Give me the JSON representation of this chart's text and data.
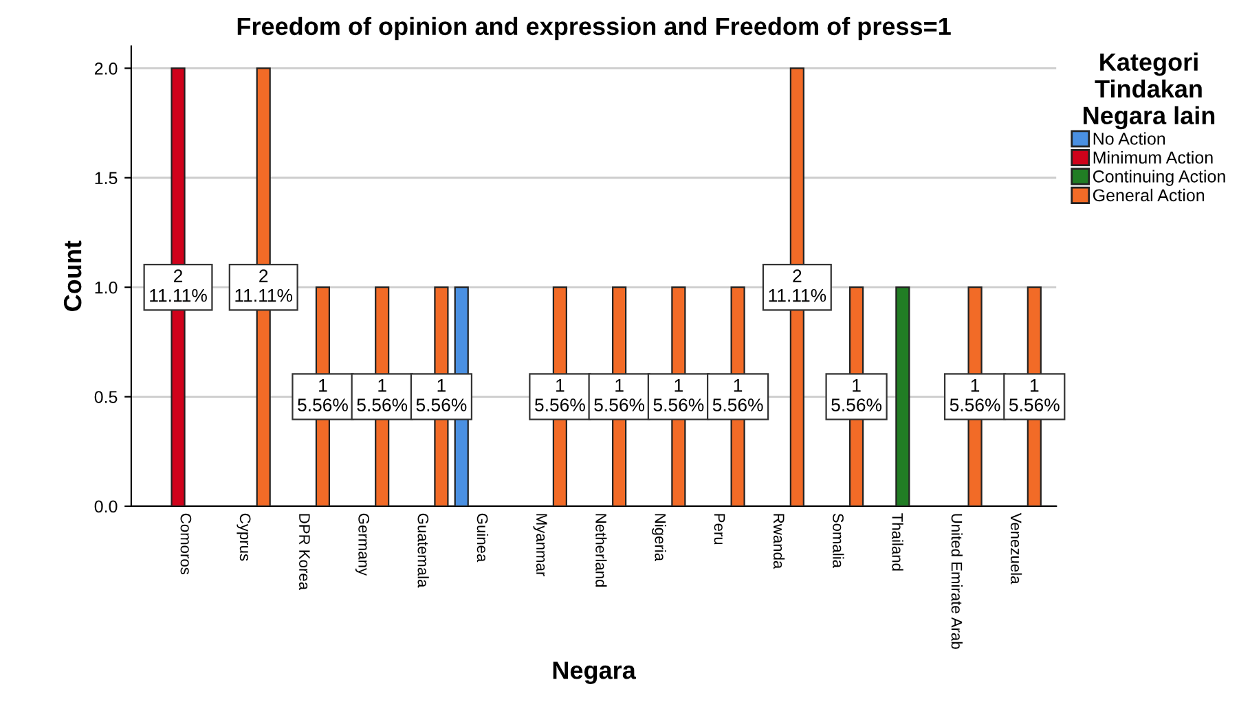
{
  "chart_data": {
    "type": "bar",
    "title": "Freedom of opinion and expression and Freedom of press=1",
    "xlabel": "Negara",
    "ylabel": "Count",
    "legend_title": "Kategori\nTindakan\nNegara lain",
    "categories": [
      "Comoros",
      "Cyprus",
      "DPR Korea",
      "Germany",
      "Guatemala",
      "Guinea",
      "Myanmar",
      "Netherland",
      "Nigeria",
      "Peru",
      "Rwanda",
      "Somalia",
      "Thailand",
      "United Emirate Arab",
      "Venezuela"
    ],
    "series": [
      {
        "name": "No Action",
        "color": "#4a90e2",
        "values": [
          null,
          null,
          null,
          null,
          null,
          1,
          null,
          null,
          null,
          null,
          null,
          null,
          null,
          null,
          null
        ],
        "value_labels": [
          null,
          null,
          null,
          null,
          null,
          null,
          null,
          null,
          null,
          null,
          null,
          null,
          null,
          null,
          null
        ]
      },
      {
        "name": "Minimum Action",
        "color": "#d0021b",
        "values": [
          2,
          null,
          null,
          null,
          null,
          null,
          null,
          null,
          null,
          null,
          null,
          null,
          null,
          null,
          null
        ],
        "value_labels": [
          "2\n11.11%",
          null,
          null,
          null,
          null,
          null,
          null,
          null,
          null,
          null,
          null,
          null,
          null,
          null,
          null
        ]
      },
      {
        "name": "Continuing Action",
        "color": "#217d24",
        "values": [
          null,
          null,
          null,
          null,
          null,
          null,
          null,
          null,
          null,
          null,
          null,
          null,
          1,
          null,
          null
        ],
        "value_labels": [
          null,
          null,
          null,
          null,
          null,
          null,
          null,
          null,
          null,
          null,
          null,
          null,
          null,
          null,
          null
        ]
      },
      {
        "name": "General Action",
        "color": "#f26b27",
        "values": [
          null,
          2,
          1,
          1,
          1,
          null,
          1,
          1,
          1,
          1,
          2,
          1,
          null,
          1,
          1
        ],
        "value_labels": [
          null,
          "2\n11.11%",
          "1\n5.56%",
          "1\n5.56%",
          "1\n5.56%",
          null,
          "1\n5.56%",
          "1\n5.56%",
          "1\n5.56%",
          "1\n5.56%",
          "2\n11.11%",
          "1\n5.56%",
          null,
          "1\n5.56%",
          "1\n5.56%"
        ]
      }
    ],
    "ylim": [
      0,
      2.1
    ],
    "yticks": [
      {
        "value": 0,
        "label": "0.0"
      },
      {
        "value": 0.5,
        "label": "0.5"
      },
      {
        "value": 1,
        "label": "1.0"
      },
      {
        "value": 1.5,
        "label": "1.5"
      },
      {
        "value": 2,
        "label": "2.0"
      }
    ],
    "grid": "y",
    "legend": "right"
  }
}
